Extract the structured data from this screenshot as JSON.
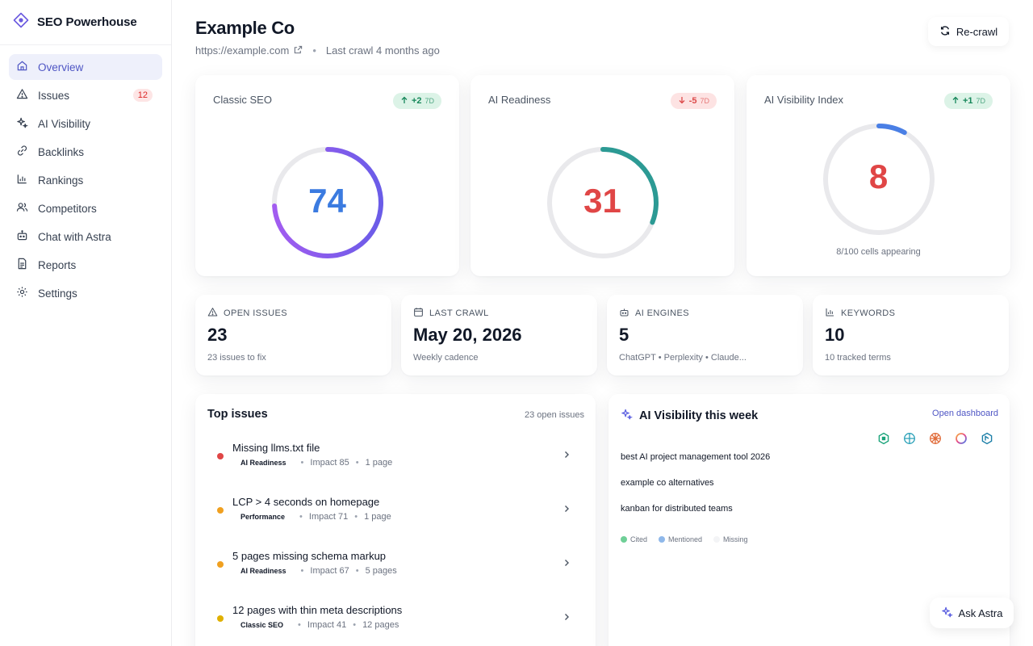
{
  "app": {
    "name": "SEO Powerhouse"
  },
  "sidebar": {
    "items": [
      {
        "label": "Overview",
        "icon": "home-icon",
        "active": true
      },
      {
        "label": "Issues",
        "icon": "warning-icon",
        "badge": "12"
      },
      {
        "label": "AI Visibility",
        "icon": "sparkles-icon"
      },
      {
        "label": "Backlinks",
        "icon": "link-icon"
      },
      {
        "label": "Rankings",
        "icon": "bar-chart-icon"
      },
      {
        "label": "Competitors",
        "icon": "users-icon"
      },
      {
        "label": "Chat with Astra",
        "icon": "bot-icon"
      },
      {
        "label": "Reports",
        "icon": "document-icon"
      },
      {
        "label": "Settings",
        "icon": "gear-icon"
      }
    ]
  },
  "header": {
    "title": "Example Co",
    "url": "https://example.com",
    "last_crawl": "Last crawl 4 months ago",
    "recrawl_label": "Re-crawl"
  },
  "scores": [
    {
      "title": "Classic SEO",
      "delta": "+2",
      "delta_period": "7D",
      "direction": "up",
      "value": "74",
      "fraction": 0.74,
      "color": "#3b7be0"
    },
    {
      "title": "AI Readiness",
      "delta": "-5",
      "delta_period": "7D",
      "direction": "down",
      "value": "31",
      "fraction": 0.31,
      "color": "#e04646"
    },
    {
      "title": "AI Visibility Index",
      "delta": "+1",
      "delta_period": "7D",
      "direction": "up",
      "value": "8",
      "fraction": 0.08,
      "color": "#e04646",
      "caption": "8/100 cells appearing"
    }
  ],
  "stats": [
    {
      "label": "Open issues",
      "icon": "warning-icon",
      "value": "23",
      "sub": "23 issues to fix"
    },
    {
      "label": "Last crawl",
      "icon": "calendar-icon",
      "value": "May 20, 2026",
      "sub": "Weekly cadence"
    },
    {
      "label": "AI engines",
      "icon": "bot-icon",
      "value": "5",
      "sub": "ChatGPT • Perplexity • Claude..."
    },
    {
      "label": "Keywords",
      "icon": "bar-chart-icon",
      "value": "10",
      "sub": "10 tracked terms"
    }
  ],
  "top_issues": {
    "title": "Top issues",
    "meta": "23 open issues",
    "items": [
      {
        "title": "Missing llms.txt file",
        "tag": "AI Readiness",
        "impact": "Impact 85",
        "pages": "1 page",
        "color": "#e04646"
      },
      {
        "title": "LCP > 4 seconds on homepage",
        "tag": "Performance",
        "impact": "Impact 71",
        "pages": "1 page",
        "color": "#f0a020"
      },
      {
        "title": "5 pages missing schema markup",
        "tag": "AI Readiness",
        "impact": "Impact 67",
        "pages": "5 pages",
        "color": "#f0a020"
      },
      {
        "title": "12 pages with thin meta descriptions",
        "tag": "Classic SEO",
        "impact": "Impact 41",
        "pages": "12 pages",
        "color": "#e0b000"
      }
    ]
  },
  "ai_visibility": {
    "title": "AI Visibility this week",
    "link": "Open dashboard",
    "queries": [
      "best AI project management tool 2026",
      "example co alternatives",
      "kanban for distributed teams"
    ],
    "legend": [
      {
        "label": "Cited",
        "color": "#6fcf97"
      },
      {
        "label": "Mentioned",
        "color": "#8fb8ea"
      },
      {
        "label": "Missing",
        "color": "#f3f4f6"
      }
    ]
  },
  "ask_astra": "Ask Astra"
}
